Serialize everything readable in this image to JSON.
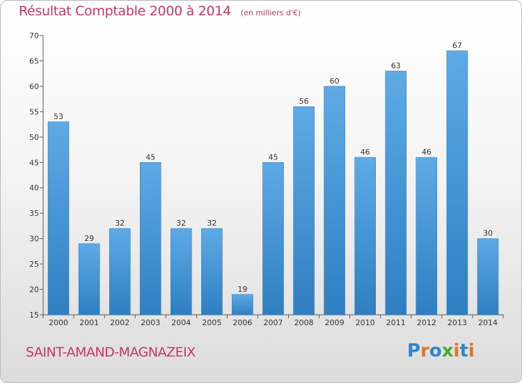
{
  "chart_data": {
    "type": "bar",
    "title": "Résultat Comptable 2000 à 2014",
    "subtitle": "(en milliers d'€)",
    "categories": [
      "2000",
      "2001",
      "2002",
      "2003",
      "2004",
      "2005",
      "2006",
      "2007",
      "2008",
      "2009",
      "2010",
      "2011",
      "2012",
      "2013",
      "2014"
    ],
    "values": [
      53,
      29,
      32,
      45,
      32,
      32,
      19,
      45,
      56,
      60,
      46,
      63,
      46,
      67,
      30
    ],
    "xlabel": "",
    "ylabel": "",
    "ylim": [
      15,
      70
    ],
    "yticks": [
      15,
      20,
      25,
      30,
      35,
      40,
      45,
      50,
      55,
      60,
      65,
      70
    ],
    "grid": false,
    "colors": {
      "bar_light": "#5daae6",
      "bar_dark": "#2f7fc1",
      "axis": "#555555",
      "title": "#cc3366"
    }
  },
  "footer": {
    "commune": "SAINT-AMAND-MAGNAZEIX",
    "brand": "Proxiti",
    "brand_colors": [
      "#2e86d1",
      "#e8731a",
      "#2e86d1",
      "#4aa82e",
      "#e8731a",
      "#2e86d1",
      "#e8731a"
    ]
  }
}
